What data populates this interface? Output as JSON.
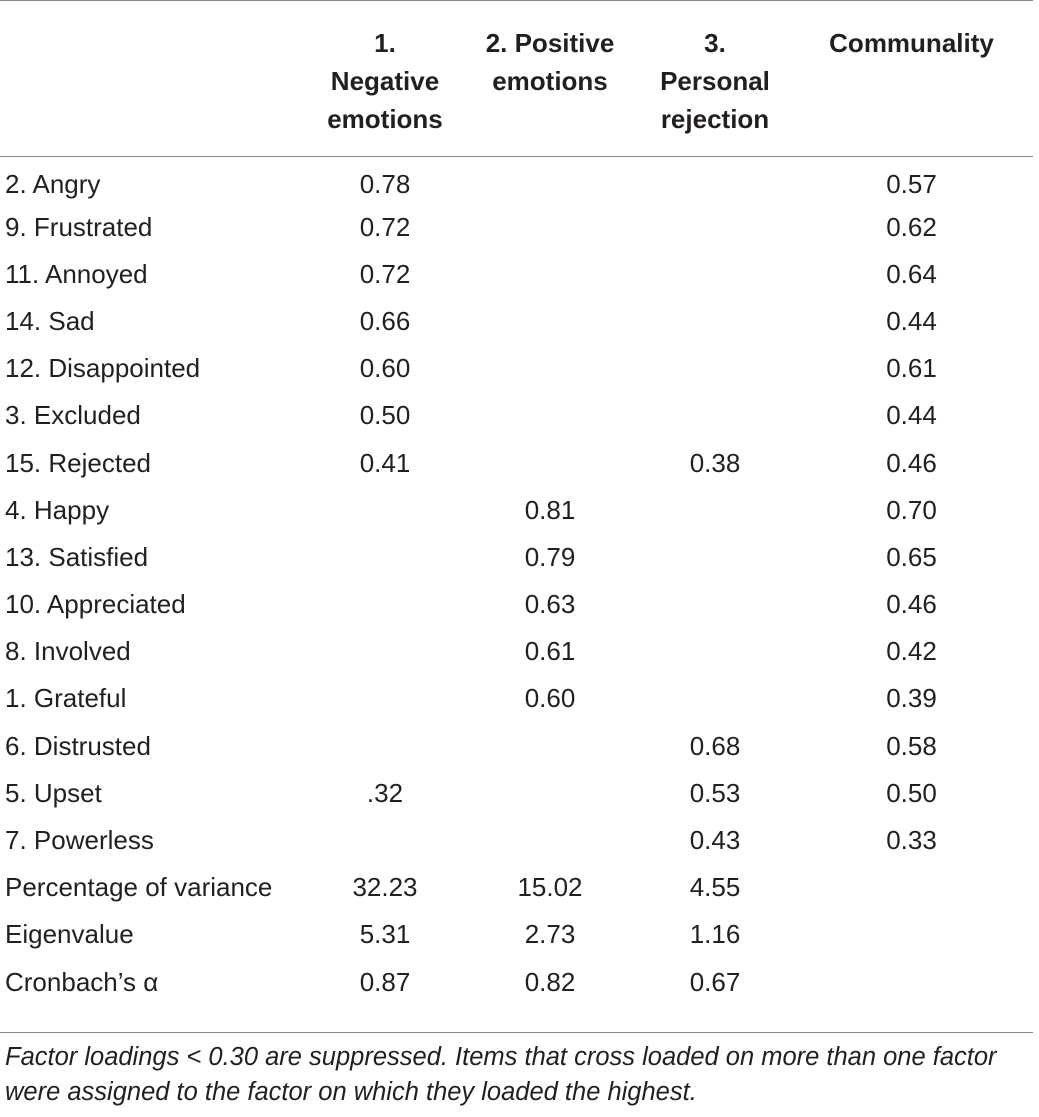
{
  "table": {
    "headers": [
      "",
      "1.\nNegative\nemotions",
      "2. Positive\nemotions",
      "3.\nPersonal\nrejection",
      "Communality"
    ],
    "header_lines": [
      [],
      [
        "1.",
        "Negative",
        "emotions"
      ],
      [
        "2. Positive",
        "emotions"
      ],
      [
        "3.",
        "Personal",
        "rejection"
      ],
      [
        "Communality"
      ]
    ],
    "rows": [
      [
        "2. Angry",
        "0.78",
        "",
        "",
        "0.57"
      ],
      [
        "9. Frustrated",
        "0.72",
        "",
        "",
        "0.62"
      ],
      [
        "11. Annoyed",
        "0.72",
        "",
        "",
        "0.64"
      ],
      [
        "14. Sad",
        "0.66",
        "",
        "",
        "0.44"
      ],
      [
        "12. Disappointed",
        "0.60",
        "",
        "",
        "0.61"
      ],
      [
        "3. Excluded",
        "0.50",
        "",
        "",
        "0.44"
      ],
      [
        "15. Rejected",
        "0.41",
        "",
        "0.38",
        "0.46"
      ],
      [
        "4. Happy",
        "",
        "0.81",
        "",
        "0.70"
      ],
      [
        "13. Satisfied",
        "",
        "0.79",
        "",
        "0.65"
      ],
      [
        "10. Appreciated",
        "",
        "0.63",
        "",
        "0.46"
      ],
      [
        "8. Involved",
        "",
        "0.61",
        "",
        "0.42"
      ],
      [
        "1. Grateful",
        "",
        "0.60",
        "",
        "0.39"
      ],
      [
        "6. Distrusted",
        "",
        "",
        "0.68",
        "0.58"
      ],
      [
        "5. Upset",
        ".32",
        "",
        "0.53",
        "0.50"
      ],
      [
        "7. Powerless",
        "",
        "",
        "0.43",
        "0.33"
      ],
      [
        "Percentage of variance",
        "32.23",
        "15.02",
        "4.55",
        ""
      ],
      [
        "Eigenvalue",
        "5.31",
        "2.73",
        "1.16",
        ""
      ],
      [
        "Cronbach’s α",
        "0.87",
        "0.82",
        "0.67",
        ""
      ]
    ]
  },
  "footnote": "Factor loadings < 0.30 are suppressed. Items that cross loaded on more than one factor were assigned to the factor on which they loaded the highest."
}
